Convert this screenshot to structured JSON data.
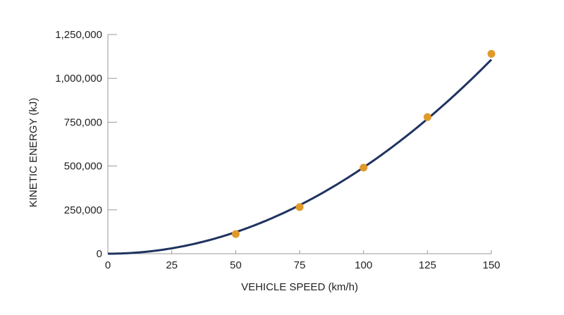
{
  "chart_data": {
    "type": "line",
    "title": "",
    "xlabel": "VEHICLE SPEED (km/h)",
    "ylabel": "KINETIC ENERGY (kJ)",
    "xlim": [
      0,
      150
    ],
    "ylim": [
      0,
      1250000
    ],
    "x_ticks": [
      0,
      25,
      50,
      75,
      100,
      125,
      150
    ],
    "x_tick_labels": [
      "0",
      "25",
      "50",
      "75",
      "100",
      "125",
      "150"
    ],
    "y_ticks": [
      0,
      250000,
      500000,
      750000,
      1000000,
      1250000
    ],
    "y_tick_labels": [
      "0",
      "250,000",
      "500,000",
      "750,000",
      "1,000,000",
      "1,250,000"
    ],
    "grid": false,
    "curve": {
      "shape": "quadratic",
      "coefficient": 49.2,
      "color": "#1f3360"
    },
    "points": {
      "x": [
        50,
        75,
        100,
        125,
        150
      ],
      "y": [
        112000,
        266000,
        491000,
        779000,
        1140000
      ],
      "color": "#e09a2a"
    }
  }
}
